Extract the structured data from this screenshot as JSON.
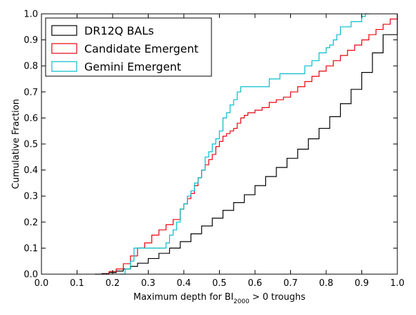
{
  "chart_data": {
    "type": "line",
    "title": "",
    "xlabel_prefix": "Maximum depth for BI",
    "xlabel_subscript": "2000",
    "xlabel_suffix": " > 0 troughs",
    "ylabel": "Cumulative Fraction",
    "xlim": [
      0.0,
      1.0
    ],
    "ylim": [
      0.0,
      1.0
    ],
    "xticks": [
      "0.0",
      "0.1",
      "0.2",
      "0.3",
      "0.4",
      "0.5",
      "0.6",
      "0.7",
      "0.8",
      "0.9",
      "1.0"
    ],
    "yticks": [
      "0.0",
      "0.1",
      "0.2",
      "0.3",
      "0.4",
      "0.5",
      "0.6",
      "0.7",
      "0.8",
      "0.9",
      "1.0"
    ],
    "legend_position": "top-left",
    "series": [
      {
        "name": "DR12Q BALs",
        "color": "#000000",
        "x": [
          0.15,
          0.17,
          0.19,
          0.21,
          0.23,
          0.25,
          0.27,
          0.3,
          0.33,
          0.36,
          0.39,
          0.42,
          0.45,
          0.48,
          0.51,
          0.54,
          0.57,
          0.6,
          0.63,
          0.66,
          0.69,
          0.72,
          0.75,
          0.78,
          0.81,
          0.84,
          0.87,
          0.9,
          0.93,
          0.96,
          1.0
        ],
        "y": [
          0.0,
          0.002,
          0.006,
          0.012,
          0.02,
          0.03,
          0.042,
          0.06,
          0.08,
          0.1,
          0.125,
          0.155,
          0.185,
          0.215,
          0.245,
          0.275,
          0.305,
          0.34,
          0.375,
          0.41,
          0.445,
          0.48,
          0.52,
          0.56,
          0.605,
          0.655,
          0.71,
          0.775,
          0.85,
          0.92,
          1.0
        ]
      },
      {
        "name": "Candidate Emergent",
        "color": "#e8000b",
        "x": [
          0.17,
          0.19,
          0.21,
          0.23,
          0.25,
          0.27,
          0.29,
          0.31,
          0.33,
          0.35,
          0.37,
          0.39,
          0.4,
          0.41,
          0.42,
          0.43,
          0.44,
          0.45,
          0.46,
          0.47,
          0.48,
          0.49,
          0.5,
          0.51,
          0.52,
          0.53,
          0.54,
          0.55,
          0.56,
          0.57,
          0.58,
          0.6,
          0.62,
          0.64,
          0.66,
          0.68,
          0.7,
          0.72,
          0.74,
          0.76,
          0.78,
          0.8,
          0.82,
          0.84,
          0.86,
          0.88,
          0.9,
          0.92,
          0.94,
          0.96,
          0.98,
          1.0
        ],
        "y": [
          0.0,
          0.01,
          0.02,
          0.04,
          0.07,
          0.1,
          0.12,
          0.15,
          0.17,
          0.19,
          0.21,
          0.25,
          0.27,
          0.29,
          0.31,
          0.34,
          0.37,
          0.4,
          0.42,
          0.44,
          0.46,
          0.49,
          0.51,
          0.53,
          0.54,
          0.55,
          0.56,
          0.58,
          0.6,
          0.61,
          0.62,
          0.63,
          0.64,
          0.66,
          0.67,
          0.68,
          0.7,
          0.72,
          0.74,
          0.76,
          0.78,
          0.8,
          0.82,
          0.84,
          0.86,
          0.88,
          0.9,
          0.92,
          0.94,
          0.96,
          0.98,
          1.0
        ]
      },
      {
        "name": "Gemini Emergent",
        "color": "#00bcc8",
        "x": [
          0.22,
          0.235,
          0.25,
          0.26,
          0.35,
          0.36,
          0.37,
          0.38,
          0.39,
          0.4,
          0.41,
          0.42,
          0.43,
          0.44,
          0.45,
          0.46,
          0.47,
          0.48,
          0.49,
          0.5,
          0.51,
          0.52,
          0.53,
          0.54,
          0.55,
          0.56,
          0.63,
          0.64,
          0.66,
          0.67,
          0.72,
          0.74,
          0.76,
          0.78,
          0.8,
          0.81,
          0.82,
          0.83,
          0.84,
          0.86,
          0.87,
          0.89,
          0.9,
          0.91,
          0.92
        ],
        "y": [
          0.0,
          0.02,
          0.05,
          0.1,
          0.12,
          0.15,
          0.17,
          0.2,
          0.25,
          0.27,
          0.3,
          0.32,
          0.35,
          0.37,
          0.4,
          0.45,
          0.47,
          0.5,
          0.52,
          0.55,
          0.6,
          0.62,
          0.65,
          0.67,
          0.7,
          0.72,
          0.72,
          0.75,
          0.75,
          0.77,
          0.77,
          0.8,
          0.82,
          0.85,
          0.87,
          0.88,
          0.9,
          0.92,
          0.95,
          0.95,
          0.97,
          0.97,
          0.99,
          1.0,
          1.0
        ]
      }
    ]
  }
}
